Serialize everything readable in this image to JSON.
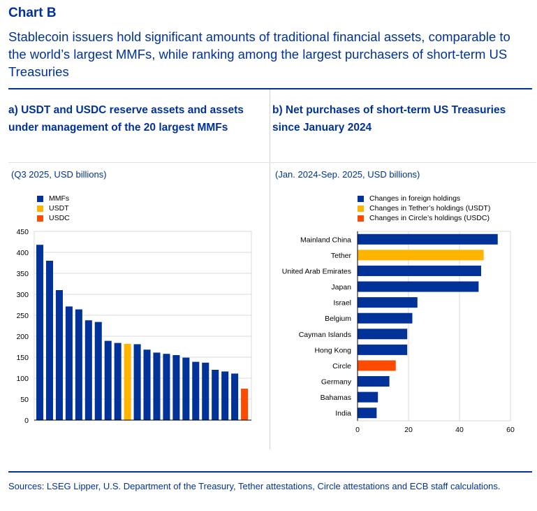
{
  "header": {
    "chart_label": "Chart B",
    "title": "Stablecoin issuers hold significant amounts of traditional financial assets, comparable to the world’s largest MMFs, while ranking among the largest purchasers of short-term US Treasuries"
  },
  "colors": {
    "mmf": "#003299",
    "usdt": "#ffb400",
    "usdc": "#ff4b00",
    "brand": "#003299"
  },
  "chart_data": [
    {
      "type": "bar",
      "panel_title": "a) USDT and USDC reserve assets and assets under management of the 20 largest MMFs",
      "unit": "(Q3 2025, USD billions)",
      "legend": [
        "MMFs",
        "USDT",
        "USDC"
      ],
      "ylim": [
        0,
        450
      ],
      "yticks": [
        0,
        50,
        100,
        150,
        200,
        250,
        300,
        350,
        400,
        450
      ],
      "grid": true,
      "bars": [
        {
          "value": 418,
          "group": "MMFs"
        },
        {
          "value": 380,
          "group": "MMFs"
        },
        {
          "value": 310,
          "group": "MMFs"
        },
        {
          "value": 271,
          "group": "MMFs"
        },
        {
          "value": 264,
          "group": "MMFs"
        },
        {
          "value": 238,
          "group": "MMFs"
        },
        {
          "value": 234,
          "group": "MMFs"
        },
        {
          "value": 189,
          "group": "MMFs"
        },
        {
          "value": 184,
          "group": "MMFs"
        },
        {
          "value": 182,
          "group": "USDT"
        },
        {
          "value": 181,
          "group": "MMFs"
        },
        {
          "value": 168,
          "group": "MMFs"
        },
        {
          "value": 161,
          "group": "MMFs"
        },
        {
          "value": 158,
          "group": "MMFs"
        },
        {
          "value": 155,
          "group": "MMFs"
        },
        {
          "value": 149,
          "group": "MMFs"
        },
        {
          "value": 139,
          "group": "MMFs"
        },
        {
          "value": 137,
          "group": "MMFs"
        },
        {
          "value": 120,
          "group": "MMFs"
        },
        {
          "value": 116,
          "group": "MMFs"
        },
        {
          "value": 111,
          "group": "MMFs"
        },
        {
          "value": 75,
          "group": "USDC"
        }
      ]
    },
    {
      "type": "bar",
      "orientation": "horizontal",
      "panel_title": "b) Net purchases of short-term US Treasuries since January 2024",
      "unit": "(Jan. 2024-Sep. 2025, USD billions)",
      "legend": [
        "Changes in foreign holdings",
        "Changes in Tether’s holdings (USDT)",
        "Changes in Circle’s holdings (USDC)"
      ],
      "xlim": [
        0,
        60
      ],
      "xticks": [
        0,
        20,
        40,
        60
      ],
      "grid": true,
      "categories": [
        "Mainland China",
        "Tether",
        "United Arab Emirates",
        "Japan",
        "Israel",
        "Belgium",
        "Cayman Islands",
        "Hong Kong",
        "Circle",
        "Germany",
        "Bahamas",
        "India"
      ],
      "values": [
        55,
        49.5,
        48.5,
        47.5,
        23.5,
        21.5,
        19.5,
        19.5,
        15,
        12.5,
        8,
        7.5
      ],
      "groups": [
        "foreign",
        "USDT",
        "foreign",
        "foreign",
        "foreign",
        "foreign",
        "foreign",
        "foreign",
        "USDC",
        "foreign",
        "foreign",
        "foreign"
      ]
    }
  ],
  "footer": {
    "sources": "Sources: LSEG Lipper, U.S. Department of the Treasury, Tether attestations, Circle attestations and ECB staff calculations."
  }
}
